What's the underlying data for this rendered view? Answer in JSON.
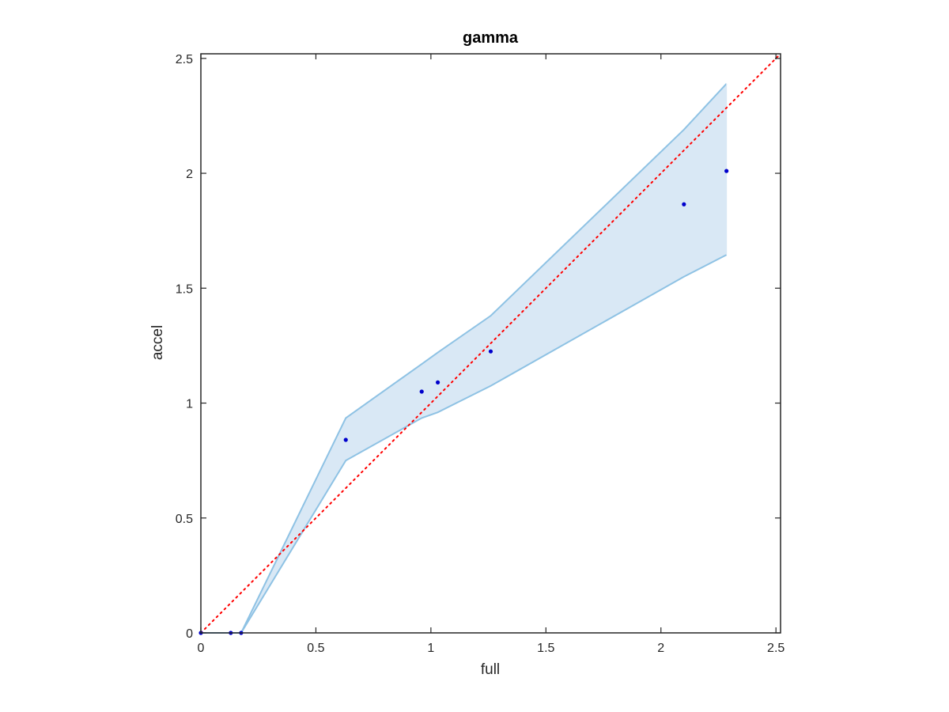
{
  "chart_data": {
    "type": "scatter",
    "title": "gamma",
    "xlabel": "full",
    "ylabel": "accel",
    "xlim": [
      0,
      2.52
    ],
    "ylim": [
      0,
      2.52
    ],
    "x_ticks": [
      0,
      0.5,
      1,
      1.5,
      2,
      2.5
    ],
    "y_ticks": [
      0,
      0.5,
      1,
      1.5,
      2,
      2.5
    ],
    "x_tick_labels": [
      "0",
      "0.5",
      "1",
      "1.5",
      "2",
      "2.5"
    ],
    "y_tick_labels": [
      "0",
      "0.5",
      "1",
      "1.5",
      "2",
      "2.5"
    ],
    "grid": false,
    "points": {
      "x": [
        0,
        0.13,
        0.175,
        0.63,
        0.96,
        1.03,
        1.26,
        2.1,
        2.285
      ],
      "y": [
        0,
        0,
        0,
        0.84,
        1.05,
        1.09,
        1.225,
        1.865,
        2.01
      ],
      "color": "#0000cc"
    },
    "band": {
      "x": [
        0,
        0.13,
        0.175,
        0.63,
        0.96,
        1.03,
        1.26,
        2.1,
        2.285
      ],
      "upper": [
        0,
        0,
        0,
        0.935,
        1.17,
        1.22,
        1.38,
        2.19,
        2.39
      ],
      "lower": [
        0,
        0,
        0,
        0.75,
        0.935,
        0.96,
        1.075,
        1.55,
        1.645
      ],
      "fill": "#d9e8f5",
      "edge": "#8ec2e4"
    },
    "reference_line": {
      "x": [
        0,
        2.52
      ],
      "y": [
        0,
        2.52
      ],
      "color": "#ff0000",
      "style": "dotted"
    }
  }
}
